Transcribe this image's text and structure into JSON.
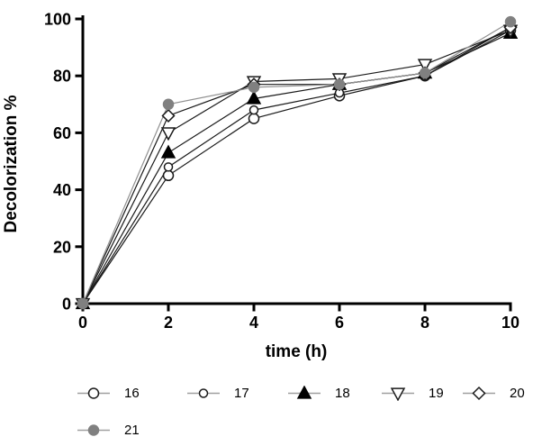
{
  "chart_data": {
    "type": "line",
    "title": "",
    "xlabel": "time (h)",
    "ylabel": "Decolorization %",
    "x": [
      0,
      2,
      4,
      6,
      8,
      10
    ],
    "x_ticks": [
      0,
      2,
      4,
      6,
      8,
      10
    ],
    "y_ticks": [
      0,
      20,
      40,
      60,
      80,
      100
    ],
    "xlim": [
      0,
      10
    ],
    "ylim": [
      0,
      100
    ],
    "grid": false,
    "legend_position": "bottom",
    "series": [
      {
        "name": "16",
        "marker": "open-circle",
        "marker_size": 11,
        "line_color": "#1a1a1a",
        "marker_stroke": "#1a1a1a",
        "marker_fill": "#ffffff",
        "values": [
          0,
          45,
          65,
          73,
          80,
          96
        ]
      },
      {
        "name": "17",
        "marker": "open-circle",
        "marker_size": 9,
        "line_color": "#1a1a1a",
        "marker_stroke": "#1a1a1a",
        "marker_fill": "#ffffff",
        "values": [
          0,
          48,
          68,
          74,
          80,
          97
        ]
      },
      {
        "name": "18",
        "marker": "filled-triangle-up",
        "marker_size": 12,
        "line_color": "#1a1a1a",
        "marker_stroke": "#000000",
        "marker_fill": "#000000",
        "values": [
          0,
          53,
          72,
          77,
          81,
          95
        ]
      },
      {
        "name": "19",
        "marker": "open-triangle-down",
        "marker_size": 12,
        "line_color": "#1a1a1a",
        "marker_stroke": "#1a1a1a",
        "marker_fill": "#ffffff",
        "values": [
          0,
          60,
          78,
          79,
          84,
          96
        ]
      },
      {
        "name": "20",
        "marker": "open-diamond",
        "marker_size": 11,
        "line_color": "#1a1a1a",
        "marker_stroke": "#1a1a1a",
        "marker_fill": "#ffffff",
        "values": [
          0,
          66,
          77,
          77,
          81,
          97
        ]
      },
      {
        "name": "21",
        "marker": "filled-circle",
        "marker_size": 11,
        "line_color": "#909090",
        "marker_stroke": "#808080",
        "marker_fill": "#808080",
        "values": [
          0,
          70,
          76,
          77,
          81,
          99
        ]
      }
    ]
  },
  "colors": {
    "axis": "#000000",
    "legend_line": "#a0a0a0",
    "background": "#ffffff"
  }
}
